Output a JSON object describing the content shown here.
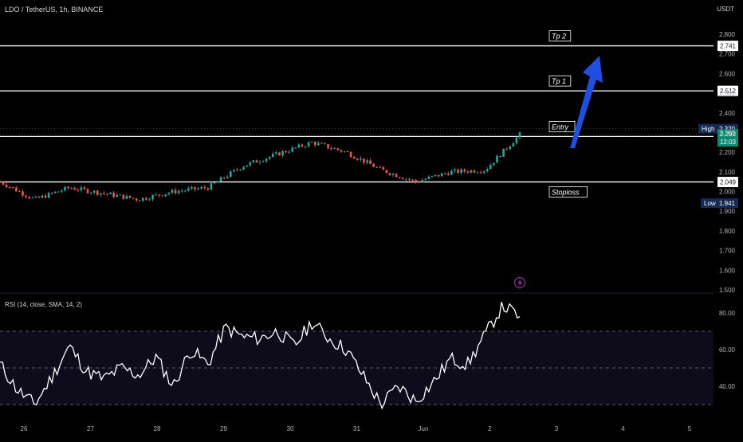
{
  "header": {
    "symbol": "LDO / TetherUS, 1h, BINANCE",
    "currency": "USDT"
  },
  "price_axis": {
    "ticks": [
      "2.800",
      "2.700",
      "2.600",
      "2.500",
      "2.400",
      "2.300",
      "2.200",
      "2.100",
      "2.000",
      "1.900",
      "1.800",
      "1.700",
      "1.600",
      "1.500"
    ]
  },
  "levels": [
    {
      "name": "Tp 2",
      "price": 2.741,
      "label": "2.741"
    },
    {
      "name": "Tp 1",
      "price": 2.512,
      "label": "2.512"
    },
    {
      "name": "Entry",
      "price": 2.28,
      "label": "2.280"
    },
    {
      "name": "Stoploss",
      "price": 2.049,
      "label": "2.049"
    }
  ],
  "price_badges": {
    "high": {
      "tag": "High",
      "value": "2.320",
      "price": 2.32
    },
    "last": {
      "value": "2.293",
      "countdown": "12:03",
      "price": 2.293
    },
    "low": {
      "tag": "Low",
      "value": "1.941",
      "price": 1.941
    }
  },
  "rsi": {
    "label": "RSI (14, close, SMA, 14, 2)",
    "ticks": [
      "80.00",
      "60.00",
      "40.00"
    ],
    "band": [
      30,
      70
    ],
    "midline": 50
  },
  "time_axis": {
    "labels": [
      "26",
      "27",
      "28",
      "29",
      "30",
      "31",
      "Jun",
      "2",
      "3",
      "4",
      "5"
    ]
  },
  "colors": {
    "up": "#26a69a",
    "down": "#ef5350",
    "arrow": "#1e4fe0",
    "lines": "#ffffff",
    "rsi_band": "#0e0c1a",
    "countdown_badge": "#0b8a72",
    "high_low_badge": "#152a55",
    "lightning": "#9c27b0"
  },
  "chart_data": {
    "type": "line",
    "title": "LDO / TetherUS, 1h, BINANCE",
    "ylabel": "USDT",
    "ylim": [
      1.5,
      2.8
    ],
    "price_path": {
      "x": [
        "26",
        "26.5",
        "27",
        "27.5",
        "28",
        "28.5",
        "29",
        "29.5",
        "30",
        "30.5",
        "31",
        "31.5",
        "Jun",
        "Jun 1.5",
        "2",
        "2.3"
      ],
      "y": [
        2.05,
        1.96,
        2.02,
        1.99,
        1.96,
        2.0,
        2.02,
        2.13,
        2.19,
        2.25,
        2.2,
        2.11,
        2.05,
        2.1,
        2.11,
        2.29
      ]
    },
    "rsi_series": {
      "name": "RSI",
      "ylim": [
        25,
        90
      ],
      "x": [
        "26",
        "26.25",
        "26.5",
        "26.75",
        "27",
        "27.25",
        "27.5",
        "27.75",
        "28",
        "28.25",
        "28.5",
        "28.75",
        "29",
        "29.25",
        "29.5",
        "29.75",
        "30",
        "30.25",
        "30.5",
        "30.75",
        "31",
        "31.25",
        "31.5",
        "31.75",
        "Jun",
        "Jun 1.25",
        "Jun 1.5",
        "Jun 1.75",
        "2",
        "2.15",
        "2.3"
      ],
      "values": [
        52,
        38,
        30,
        45,
        62,
        48,
        44,
        50,
        46,
        56,
        40,
        60,
        52,
        72,
        67,
        66,
        70,
        62,
        75,
        66,
        60,
        45,
        30,
        40,
        32,
        42,
        55,
        52,
        68,
        84,
        78
      ]
    }
  }
}
